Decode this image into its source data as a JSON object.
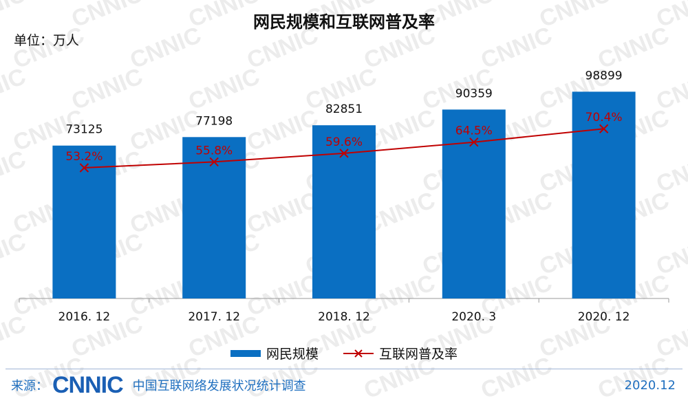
{
  "watermark": "CNNIC",
  "title": "网民规模和互联网普及率",
  "unit_label": "单位：万人",
  "chart_data": {
    "type": "bar",
    "title": "网民规模和互联网普及率",
    "categories": [
      "2016. 12",
      "2017. 12",
      "2018. 12",
      "2020. 3",
      "2020. 12"
    ],
    "series": [
      {
        "name": "网民规模",
        "type": "bar",
        "values": [
          73125,
          77198,
          82851,
          90359,
          98899
        ],
        "labels": [
          "73125",
          "77198",
          "82851",
          "90359",
          "98899"
        ],
        "color": "#0a6fc2"
      },
      {
        "name": "互联网普及率",
        "type": "line",
        "values": [
          53.2,
          55.8,
          59.6,
          64.5,
          70.4
        ],
        "labels": [
          "53.2%",
          "55.8%",
          "59.6%",
          "64.5%",
          "70.4%"
        ],
        "color": "#c00000"
      }
    ],
    "grid": false,
    "legend": "bottom"
  },
  "legend": {
    "items": [
      "网民规模",
      "互联网普及率"
    ]
  },
  "footer": {
    "source_label": "来源：",
    "logo": "CNNIC",
    "org": "中国互联网络发展状况统计调查",
    "date": "2020.12"
  }
}
